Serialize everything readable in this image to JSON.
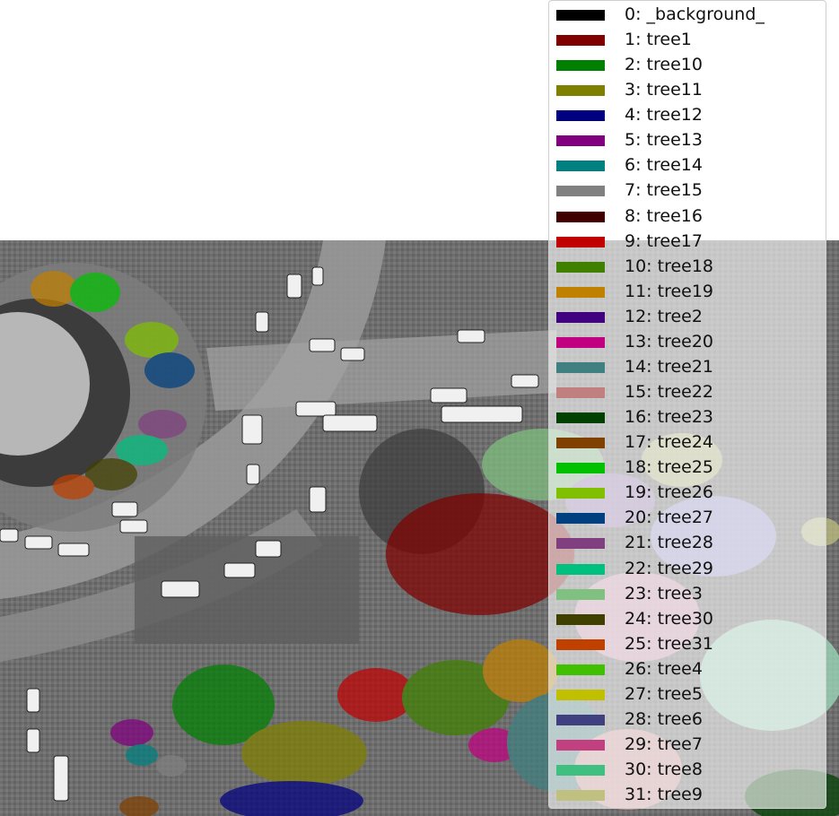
{
  "image": {
    "description_visible": "aerial grayscale photo of plaza with colored tree segmentation masks"
  },
  "legend": {
    "entries": [
      {
        "label": "0: _background_",
        "color": "#000000"
      },
      {
        "label": "1: tree1",
        "color": "#800000"
      },
      {
        "label": "2: tree10",
        "color": "#008000"
      },
      {
        "label": "3: tree11",
        "color": "#808000"
      },
      {
        "label": "4: tree12",
        "color": "#000080"
      },
      {
        "label": "5: tree13",
        "color": "#800080"
      },
      {
        "label": "6: tree14",
        "color": "#008080"
      },
      {
        "label": "7: tree15",
        "color": "#808080"
      },
      {
        "label": "8: tree16",
        "color": "#400000"
      },
      {
        "label": "9: tree17",
        "color": "#c00000"
      },
      {
        "label": "10: tree18",
        "color": "#408000"
      },
      {
        "label": "11: tree19",
        "color": "#c08000"
      },
      {
        "label": "12: tree2",
        "color": "#400080"
      },
      {
        "label": "13: tree20",
        "color": "#c00080"
      },
      {
        "label": "14: tree21",
        "color": "#408080"
      },
      {
        "label": "15: tree22",
        "color": "#c08080"
      },
      {
        "label": "16: tree23",
        "color": "#004000"
      },
      {
        "label": "17: tree24",
        "color": "#804000"
      },
      {
        "label": "18: tree25",
        "color": "#00c000"
      },
      {
        "label": "19: tree26",
        "color": "#80c000"
      },
      {
        "label": "20: tree27",
        "color": "#004080"
      },
      {
        "label": "21: tree28",
        "color": "#804080"
      },
      {
        "label": "22: tree29",
        "color": "#00c080"
      },
      {
        "label": "23: tree3",
        "color": "#80c080"
      },
      {
        "label": "24: tree30",
        "color": "#404000"
      },
      {
        "label": "25: tree31",
        "color": "#c04000"
      },
      {
        "label": "26: tree4",
        "color": "#40c000"
      },
      {
        "label": "27: tree5",
        "color": "#c0c000"
      },
      {
        "label": "28: tree6",
        "color": "#404080"
      },
      {
        "label": "29: tree7",
        "color": "#c04080"
      },
      {
        "label": "30: tree8",
        "color": "#40c080"
      },
      {
        "label": "31: tree9",
        "color": "#c0c080"
      }
    ]
  }
}
